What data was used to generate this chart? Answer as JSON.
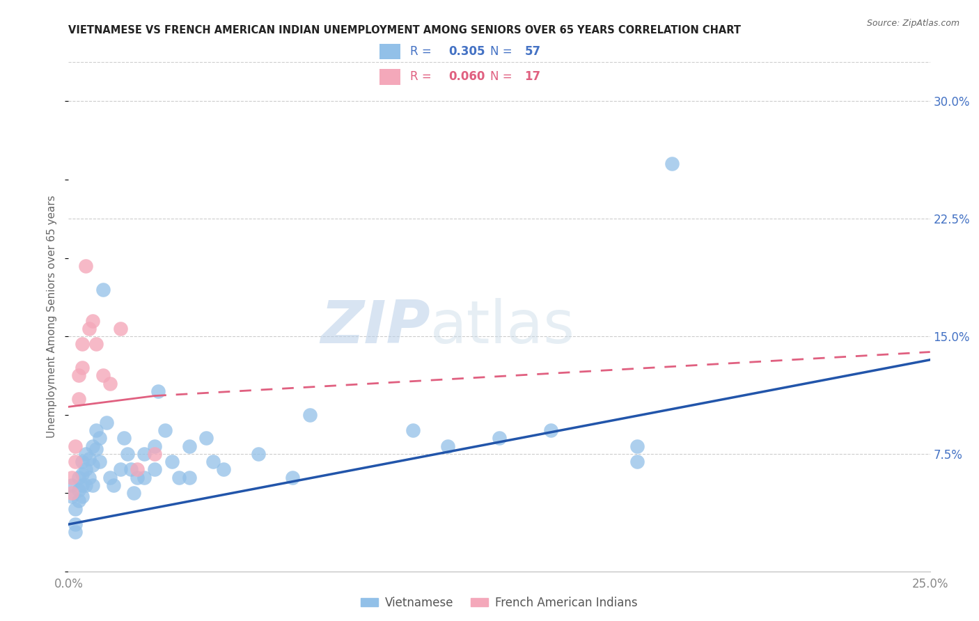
{
  "title": "VIETNAMESE VS FRENCH AMERICAN INDIAN UNEMPLOYMENT AMONG SENIORS OVER 65 YEARS CORRELATION CHART",
  "source": "Source: ZipAtlas.com",
  "ylabel": "Unemployment Among Seniors over 65 years",
  "xlim": [
    0.0,
    0.25
  ],
  "ylim": [
    0.0,
    0.325
  ],
  "yticks_right": [
    0.075,
    0.15,
    0.225,
    0.3
  ],
  "yticks_right_labels": [
    "7.5%",
    "15.0%",
    "22.5%",
    "30.0%"
  ],
  "blue_color": "#92C0E8",
  "pink_color": "#F4A8BA",
  "blue_line_color": "#2255AA",
  "pink_line_color": "#E06080",
  "watermark_zip": "ZIP",
  "watermark_atlas": "atlas",
  "vietnamese_x": [
    0.001,
    0.001,
    0.002,
    0.002,
    0.002,
    0.003,
    0.003,
    0.003,
    0.004,
    0.004,
    0.004,
    0.004,
    0.005,
    0.005,
    0.005,
    0.006,
    0.006,
    0.007,
    0.007,
    0.007,
    0.008,
    0.008,
    0.009,
    0.009,
    0.01,
    0.011,
    0.012,
    0.013,
    0.015,
    0.016,
    0.017,
    0.018,
    0.019,
    0.02,
    0.022,
    0.022,
    0.025,
    0.025,
    0.026,
    0.028,
    0.03,
    0.032,
    0.035,
    0.035,
    0.04,
    0.042,
    0.045,
    0.055,
    0.065,
    0.07,
    0.1,
    0.11,
    0.125,
    0.14,
    0.165,
    0.165,
    0.175
  ],
  "vietnamese_y": [
    0.055,
    0.048,
    0.04,
    0.03,
    0.025,
    0.06,
    0.052,
    0.045,
    0.07,
    0.062,
    0.055,
    0.048,
    0.075,
    0.065,
    0.055,
    0.072,
    0.06,
    0.08,
    0.068,
    0.055,
    0.09,
    0.078,
    0.085,
    0.07,
    0.18,
    0.095,
    0.06,
    0.055,
    0.065,
    0.085,
    0.075,
    0.065,
    0.05,
    0.06,
    0.075,
    0.06,
    0.08,
    0.065,
    0.115,
    0.09,
    0.07,
    0.06,
    0.08,
    0.06,
    0.085,
    0.07,
    0.065,
    0.075,
    0.06,
    0.1,
    0.09,
    0.08,
    0.085,
    0.09,
    0.08,
    0.07,
    0.26
  ],
  "french_x": [
    0.001,
    0.001,
    0.002,
    0.002,
    0.003,
    0.003,
    0.004,
    0.004,
    0.005,
    0.006,
    0.007,
    0.008,
    0.01,
    0.012,
    0.015,
    0.02,
    0.025
  ],
  "french_y": [
    0.06,
    0.05,
    0.08,
    0.07,
    0.125,
    0.11,
    0.145,
    0.13,
    0.195,
    0.155,
    0.16,
    0.145,
    0.125,
    0.12,
    0.155,
    0.065,
    0.075
  ],
  "blue_reg": [
    0.0,
    0.25,
    0.03,
    0.135
  ],
  "pink_reg_solid": [
    0.0,
    0.025,
    0.105,
    0.112
  ],
  "pink_reg_dashed": [
    0.025,
    0.25,
    0.112,
    0.14
  ]
}
